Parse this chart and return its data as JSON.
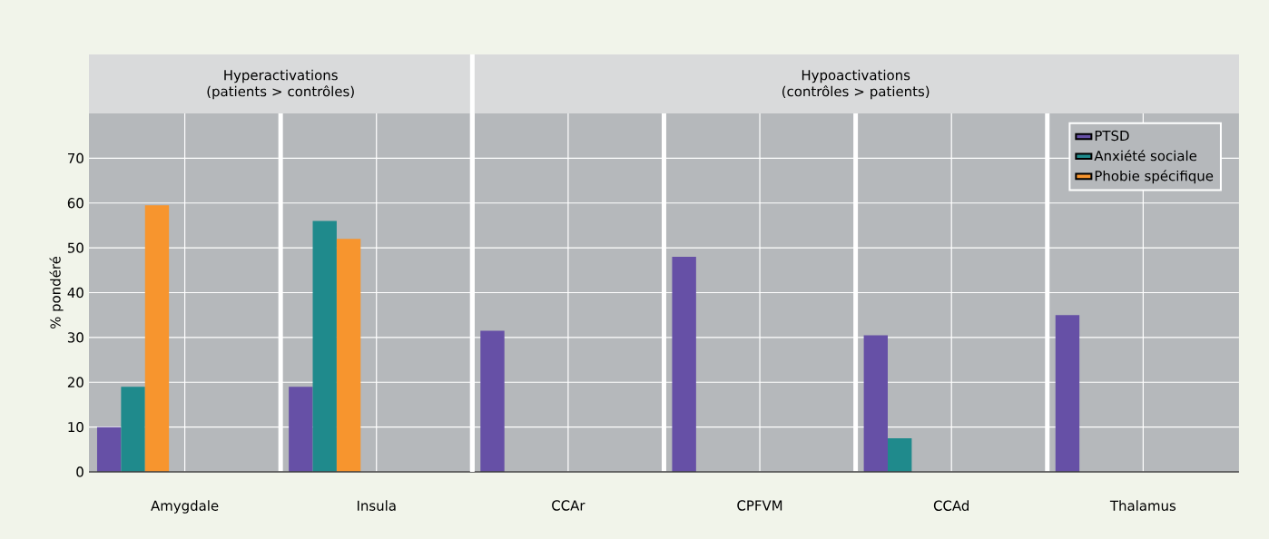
{
  "chart_data": {
    "type": "bar",
    "ylabel": "% pondéré",
    "categories": [
      "Amygdale",
      "Insula",
      "CCAr",
      "CPFVM",
      "CCAd",
      "Thalamus"
    ],
    "series": [
      {
        "name": "PTSD",
        "color": "#6650a6",
        "values": [
          10,
          19,
          31.5,
          48,
          30.5,
          35
        ]
      },
      {
        "name": "Anxiété sociale",
        "color": "#1f8a8c",
        "values": [
          19,
          56,
          null,
          null,
          7.5,
          null
        ]
      },
      {
        "name": "Phobie spécifique",
        "color": "#f7952e",
        "values": [
          59.5,
          52,
          null,
          null,
          null,
          null
        ]
      }
    ],
    "annotations": [
      "Hyperactivations\n(patients > contrôles)",
      "Hypoactivations\n(contrôles > patients)"
    ],
    "ylim": [
      0,
      80
    ],
    "yticks": [
      0,
      10,
      20,
      30,
      40,
      50,
      60,
      70
    ],
    "grid": true,
    "legend": "top right"
  }
}
